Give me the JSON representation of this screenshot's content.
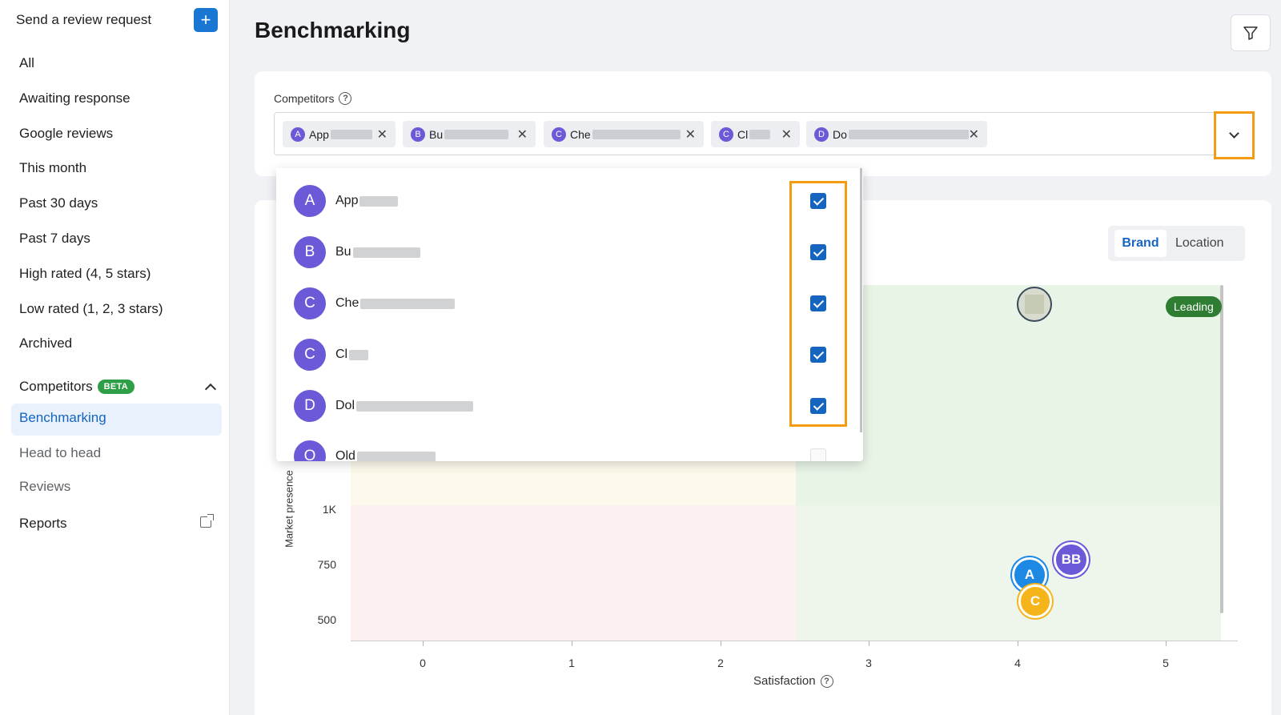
{
  "sidebar": {
    "send_request": "Send a review request",
    "plus": "+",
    "items": [
      {
        "label": "All"
      },
      {
        "label": "Awaiting response"
      },
      {
        "label": "Google reviews"
      },
      {
        "label": "This month"
      },
      {
        "label": "Past 30 days"
      },
      {
        "label": "Past 7 days"
      },
      {
        "label": "High rated (4, 5 stars)"
      },
      {
        "label": "Low rated (1, 2, 3 stars)"
      },
      {
        "label": "Archived"
      }
    ],
    "competitors": {
      "label": "Competitors",
      "badge": "BETA"
    },
    "sub_items": [
      {
        "label": "Benchmarking"
      },
      {
        "label": "Head to head"
      },
      {
        "label": "Reviews"
      }
    ],
    "reports": "Reports"
  },
  "header": {
    "title": "Benchmarking"
  },
  "competitors_select": {
    "label": "Competitors",
    "help": "?",
    "chips": [
      {
        "letter": "A",
        "name": "App"
      },
      {
        "letter": "B",
        "name": "Bu"
      },
      {
        "letter": "C",
        "name": "Che"
      },
      {
        "letter": "C",
        "name": "Cl"
      },
      {
        "letter": "D",
        "name": "Do"
      }
    ],
    "remove_glyph": "✕"
  },
  "dropdown": {
    "options": [
      {
        "letter": "A",
        "name": "App",
        "checked": true
      },
      {
        "letter": "B",
        "name": "Bu",
        "checked": true
      },
      {
        "letter": "C",
        "name": "Che",
        "checked": true
      },
      {
        "letter": "C",
        "name": "Cl",
        "checked": true
      },
      {
        "letter": "D",
        "name": "Dol",
        "checked": true
      },
      {
        "letter": "O",
        "name": "Old",
        "checked": false
      }
    ]
  },
  "view_toggle": {
    "brand": "Brand",
    "location": "Location",
    "selected": "Brand"
  },
  "chart_data": {
    "type": "scatter",
    "title": "",
    "xlabel": "Satisfaction",
    "ylabel": "Market presence",
    "x_ticks": [
      "0",
      "1",
      "2",
      "3",
      "4",
      "5"
    ],
    "y_ticks": [
      "1K",
      "750",
      "500"
    ],
    "quadrant_label": "Leading",
    "points": [
      {
        "label": "A",
        "x": 4.08,
        "y": 720,
        "color": "#1e88e5"
      },
      {
        "label": "BB",
        "x": 4.36,
        "y": 780,
        "color": "#6a5ad8"
      },
      {
        "label": "C",
        "x": 4.12,
        "y": 620,
        "color": "#f5b41a"
      },
      {
        "label": "",
        "x": 4.1,
        "y": 2000,
        "color": "#d8dccf"
      }
    ]
  },
  "colors": {
    "accent": "#1565c0",
    "highlight": "#f39c12",
    "avatar": "#6a5ad8",
    "leading": "#2e7d32"
  }
}
